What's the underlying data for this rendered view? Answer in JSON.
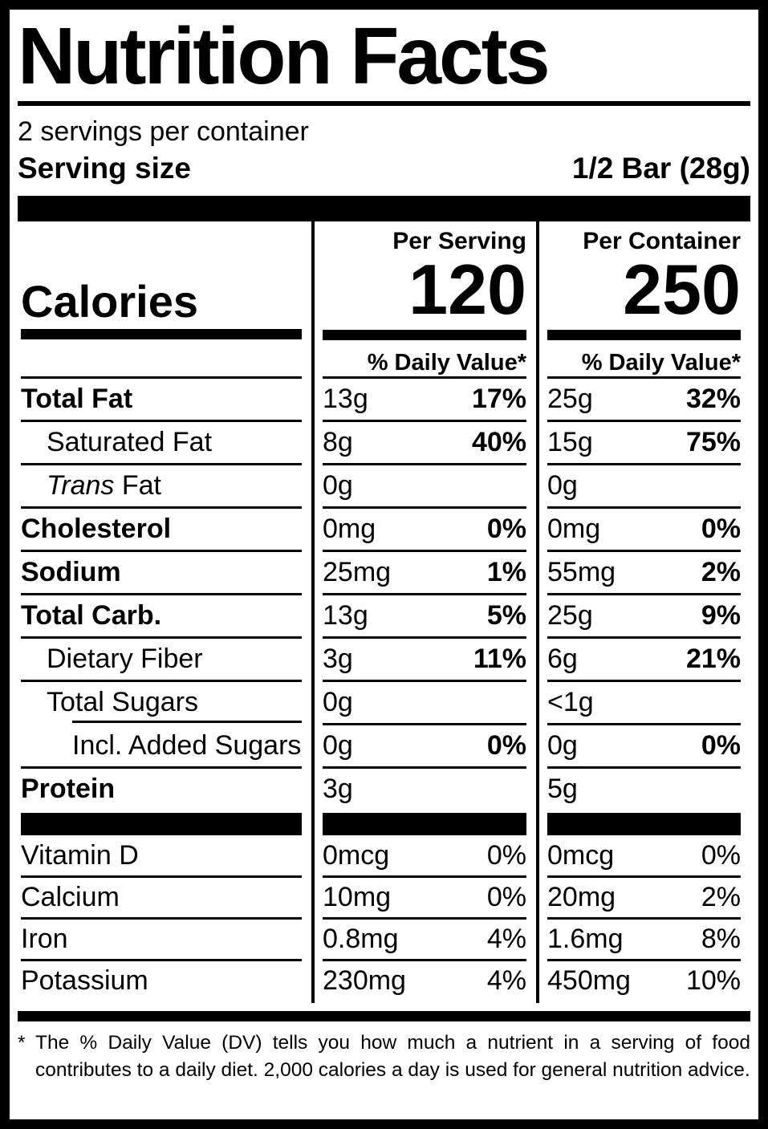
{
  "colors": {
    "ink": "#000000",
    "paper": "#ffffff"
  },
  "header": {
    "title": "Nutrition Facts",
    "servings_per_container": "2 servings per container",
    "serving_size_label": "Serving size",
    "serving_size_value": "1/2 Bar (28g)"
  },
  "calories": {
    "label": "Calories",
    "per_serving_header": "Per Serving",
    "per_serving_value": "120",
    "per_container_header": "Per Container",
    "per_container_value": "250",
    "daily_value_header_serving": "% Daily Value*",
    "daily_value_header_container": "% Daily Value*"
  },
  "nutrients": [
    {
      "label": "Total Fat",
      "per_serving": {
        "amount": "13g",
        "dv": "17%"
      },
      "per_container": {
        "amount": "25g",
        "dv": "32%"
      }
    },
    {
      "label": "Saturated Fat",
      "per_serving": {
        "amount": "8g",
        "dv": "40%"
      },
      "per_container": {
        "amount": "15g",
        "dv": "75%"
      }
    },
    {
      "label_italic": "Trans",
      "label_rest": " Fat",
      "per_serving": {
        "amount": "0g",
        "dv": ""
      },
      "per_container": {
        "amount": "0g",
        "dv": ""
      }
    },
    {
      "label": "Cholesterol",
      "per_serving": {
        "amount": "0mg",
        "dv": "0%"
      },
      "per_container": {
        "amount": "0mg",
        "dv": "0%"
      }
    },
    {
      "label": "Sodium",
      "per_serving": {
        "amount": "25mg",
        "dv": "1%"
      },
      "per_container": {
        "amount": "55mg",
        "dv": "2%"
      }
    },
    {
      "label": "Total Carb.",
      "per_serving": {
        "amount": "13g",
        "dv": "5%"
      },
      "per_container": {
        "amount": "25g",
        "dv": "9%"
      }
    },
    {
      "label": "Dietary Fiber",
      "per_serving": {
        "amount": "3g",
        "dv": "11%"
      },
      "per_container": {
        "amount": "6g",
        "dv": "21%"
      }
    },
    {
      "label": "Total Sugars",
      "per_serving": {
        "amount": "0g",
        "dv": ""
      },
      "per_container": {
        "amount": "<1g",
        "dv": ""
      }
    },
    {
      "label": "Incl. Added Sugars",
      "per_serving": {
        "amount": "0g",
        "dv": "0%"
      },
      "per_container": {
        "amount": "0g",
        "dv": "0%"
      }
    },
    {
      "label": "Protein",
      "per_serving": {
        "amount": "3g",
        "dv": ""
      },
      "per_container": {
        "amount": "5g",
        "dv": ""
      }
    }
  ],
  "vitamins": [
    {
      "label": "Vitamin D",
      "per_serving": {
        "amount": "0mcg",
        "dv": "0%"
      },
      "per_container": {
        "amount": "0mcg",
        "dv": "0%"
      }
    },
    {
      "label": "Calcium",
      "per_serving": {
        "amount": "10mg",
        "dv": "0%"
      },
      "per_container": {
        "amount": "20mg",
        "dv": "2%"
      }
    },
    {
      "label": "Iron",
      "per_serving": {
        "amount": "0.8mg",
        "dv": "4%"
      },
      "per_container": {
        "amount": "1.6mg",
        "dv": "8%"
      }
    },
    {
      "label": "Potassium",
      "per_serving": {
        "amount": "230mg",
        "dv": "4%"
      },
      "per_container": {
        "amount": "450mg",
        "dv": "10%"
      }
    }
  ],
  "footnote": {
    "marker": "*",
    "text": "The % Daily Value (DV) tells you how much a nutrient in a serving of food contributes to a daily diet. 2,000 calories a day is used for general nutrition advice."
  }
}
